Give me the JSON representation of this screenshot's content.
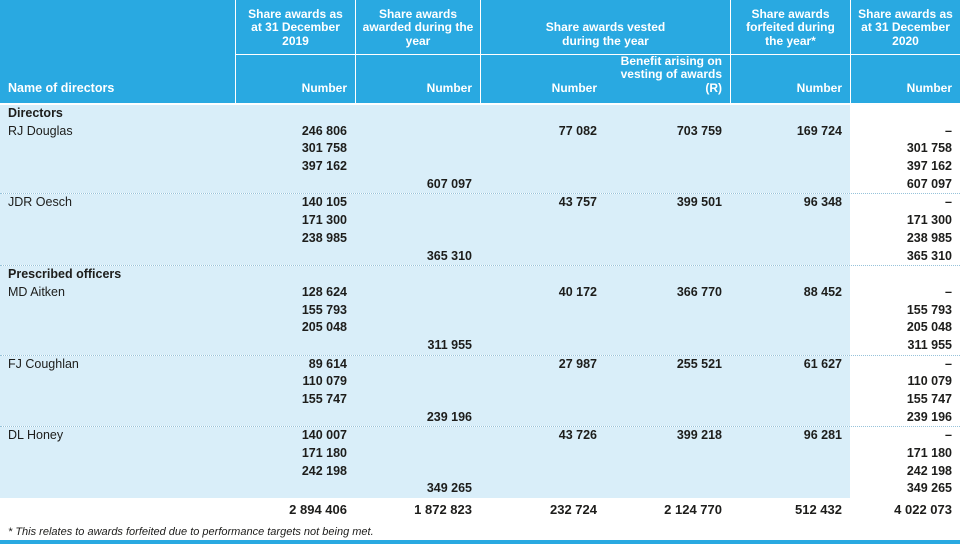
{
  "colors": {
    "header_bg": "#29a9e1",
    "body_bg": "#d9eef9",
    "ink": "#1d1d1b",
    "dotted": "#97c3da"
  },
  "table": {
    "header": {
      "name_col": "Name of directors",
      "groups": [
        {
          "title": "Share awards as at 31 December 2019"
        },
        {
          "title": "Share awards awarded during the year"
        },
        {
          "title": "Share awards vested during the year"
        },
        {
          "title": "Share awards forfeited during the year*"
        },
        {
          "title": "Share awards as at 31 December 2020"
        }
      ],
      "subs": [
        "Number",
        "Number",
        "Number",
        "Benefit arising on vesting of awards (R)",
        "Number",
        "Number"
      ]
    },
    "sections": [
      {
        "label": "Directors",
        "directors": [
          {
            "name": "RJ Douglas",
            "rows": [
              [
                "246 806",
                "",
                "77 082",
                "703 759",
                "169 724",
                "–"
              ],
              [
                "301 758",
                "",
                "",
                "",
                "",
                "301 758"
              ],
              [
                "397 162",
                "",
                "",
                "",
                "",
                "397 162"
              ],
              [
                "",
                "607 097",
                "",
                "",
                "",
                "607 097"
              ]
            ]
          },
          {
            "name": "JDR Oesch",
            "rows": [
              [
                "140 105",
                "",
                "43 757",
                "399 501",
                "96 348",
                "–"
              ],
              [
                "171 300",
                "",
                "",
                "",
                "",
                "171 300"
              ],
              [
                "238 985",
                "",
                "",
                "",
                "",
                "238 985"
              ],
              [
                "",
                "365 310",
                "",
                "",
                "",
                "365 310"
              ]
            ]
          }
        ]
      },
      {
        "label": "Prescribed officers",
        "directors": [
          {
            "name": "MD Aitken",
            "rows": [
              [
                "128 624",
                "",
                "40 172",
                "366 770",
                "88 452",
                "–"
              ],
              [
                "155 793",
                "",
                "",
                "",
                "",
                "155 793"
              ],
              [
                "205 048",
                "",
                "",
                "",
                "",
                "205 048"
              ],
              [
                "",
                "311 955",
                "",
                "",
                "",
                "311 955"
              ]
            ]
          },
          {
            "name": "FJ Coughlan",
            "rows": [
              [
                "89 614",
                "",
                "27 987",
                "255 521",
                "61 627",
                "–"
              ],
              [
                "110 079",
                "",
                "",
                "",
                "",
                "110 079"
              ],
              [
                "155 747",
                "",
                "",
                "",
                "",
                "155 747"
              ],
              [
                "",
                "239 196",
                "",
                "",
                "",
                "239 196"
              ]
            ]
          },
          {
            "name": "DL Honey",
            "rows": [
              [
                "140 007",
                "",
                "43 726",
                "399 218",
                "96 281",
                "–"
              ],
              [
                "171 180",
                "",
                "",
                "",
                "",
                "171 180"
              ],
              [
                "242 198",
                "",
                "",
                "",
                "",
                "242 198"
              ],
              [
                "",
                "349 265",
                "",
                "",
                "",
                "349 265"
              ]
            ]
          }
        ]
      }
    ],
    "totals": [
      "2 894 406",
      "1 872 823",
      "232 724",
      "2 124 770",
      "512 432",
      "4 022 073"
    ],
    "footnote": "* This relates to awards forfeited due to performance targets not being met."
  }
}
